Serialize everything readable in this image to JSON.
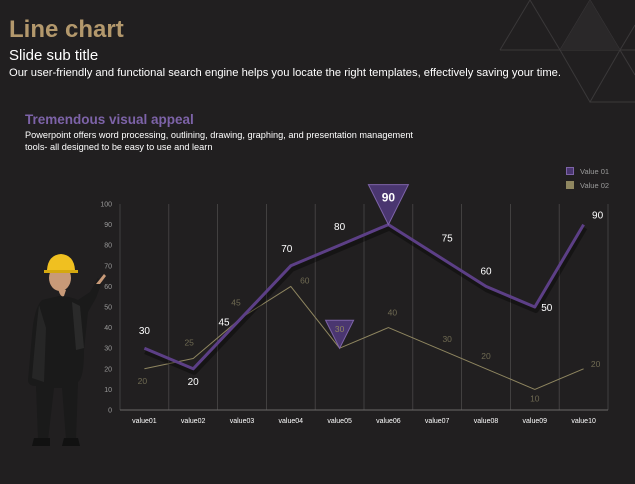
{
  "slide": {
    "title": "Line chart",
    "subtitle": "Slide sub title",
    "description": "Our user-friendly and functional search engine helps you locate the right templates, effectively saving your time.",
    "section_title": "Tremendous visual appeal",
    "section_text": "Powerpoint offers word processing, outlining, drawing, graphing, and presentation management tools- all designed to be easy to use and learn"
  },
  "colors": {
    "background": "#211f20",
    "title": "#b3986c",
    "accent_purple": "#7d63a8",
    "series1": "#5c3f86",
    "series2": "#8f8660",
    "grid": "#4a4848"
  },
  "icons": {
    "person": "engineer-with-hard-hat-illustration",
    "decoration": "triangle-pattern"
  },
  "chart_data": {
    "type": "line",
    "categories": [
      "value01",
      "value02",
      "value03",
      "value04",
      "value05",
      "value06",
      "value07",
      "value08",
      "value09",
      "value10"
    ],
    "series": [
      {
        "name": "Value 01",
        "values": [
          30,
          20,
          45,
          70,
          80,
          90,
          75,
          60,
          50,
          90
        ]
      },
      {
        "name": "Value 02",
        "values": [
          20,
          25,
          45,
          60,
          30,
          40,
          30,
          20,
          10,
          20
        ]
      }
    ],
    "y_ticks": [
      "0",
      "10",
      "20",
      "30",
      "40",
      "50",
      "60",
      "70",
      "80",
      "90",
      "100"
    ],
    "ylim": [
      0,
      100
    ],
    "grid": true,
    "legend": "top-right",
    "callouts": [
      {
        "series": 0,
        "index": 5,
        "label": "90"
      },
      {
        "series": 1,
        "index": 4,
        "label": "30"
      }
    ]
  }
}
